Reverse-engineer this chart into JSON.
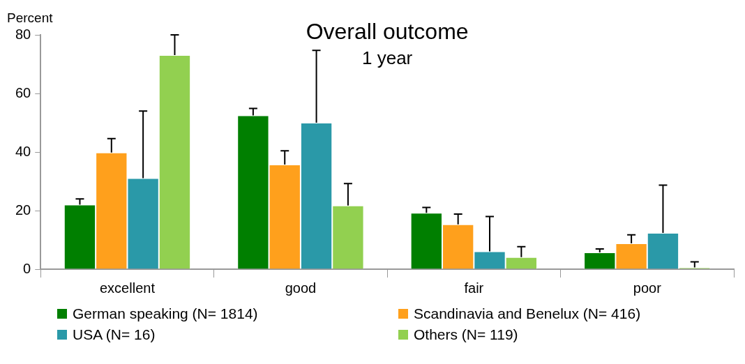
{
  "chart_data": {
    "type": "bar",
    "title": "Overall outcome",
    "subtitle": "1 year",
    "ylabel": "Percent",
    "categories": [
      "excellent",
      "good",
      "fair",
      "poor"
    ],
    "series": [
      {
        "name": "German speaking (N= 1814)",
        "color": "#007f00",
        "values": [
          22.0,
          52.5,
          19.2,
          5.7
        ],
        "errors": [
          [
            22.0,
            24.0
          ],
          [
            52.5,
            54.9
          ],
          [
            19.2,
            21.1
          ],
          [
            5.7,
            6.9
          ]
        ]
      },
      {
        "name": "Scandinavia and Benelux (N= 416)",
        "color": "#ffa01c",
        "values": [
          39.8,
          35.7,
          15.3,
          8.8
        ],
        "errors": [
          [
            39.8,
            44.6
          ],
          [
            35.7,
            40.4
          ],
          [
            15.3,
            18.8
          ],
          [
            8.8,
            11.7
          ]
        ]
      },
      {
        "name": "USA (N= 16)",
        "color": "#2a99a8",
        "values": [
          31.1,
          50.0,
          6.1,
          12.4
        ],
        "errors": [
          [
            31.1,
            54.0
          ],
          [
            50.0,
            74.7
          ],
          [
            6.1,
            18.0
          ],
          [
            12.4,
            28.7
          ]
        ]
      },
      {
        "name": "Others (N= 119)",
        "color": "#92d050",
        "values": [
          73.1,
          21.7,
          4.1,
          0.6
        ],
        "errors": [
          [
            73.1,
            80.0
          ],
          [
            21.7,
            29.2
          ],
          [
            4.1,
            7.7
          ],
          [
            0.6,
            2.5
          ]
        ]
      }
    ],
    "ylim": [
      0,
      80
    ],
    "yticks": [
      0,
      20,
      40,
      60,
      80
    ],
    "grid": false,
    "legend": "bottom"
  }
}
